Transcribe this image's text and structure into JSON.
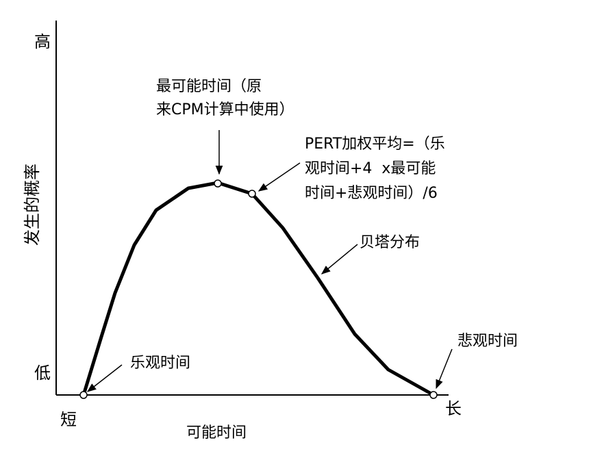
{
  "axes": {
    "y_label": "发生的概率",
    "y_high": "高",
    "y_low": "低",
    "x_label": "可能时间",
    "x_short": "短",
    "x_long": "长"
  },
  "annotations": {
    "most_likely_line1": "最可能时间（原",
    "most_likely_line2": "来CPM计算中使用）",
    "pert_line1": "PERT加权平均=（乐",
    "pert_line2": "观时间+4  x最可能",
    "pert_line3": "时间+悲观时间）/6",
    "beta": "贝塔分布",
    "optimistic": "乐观时间",
    "pessimistic": "悲观时间"
  }
}
